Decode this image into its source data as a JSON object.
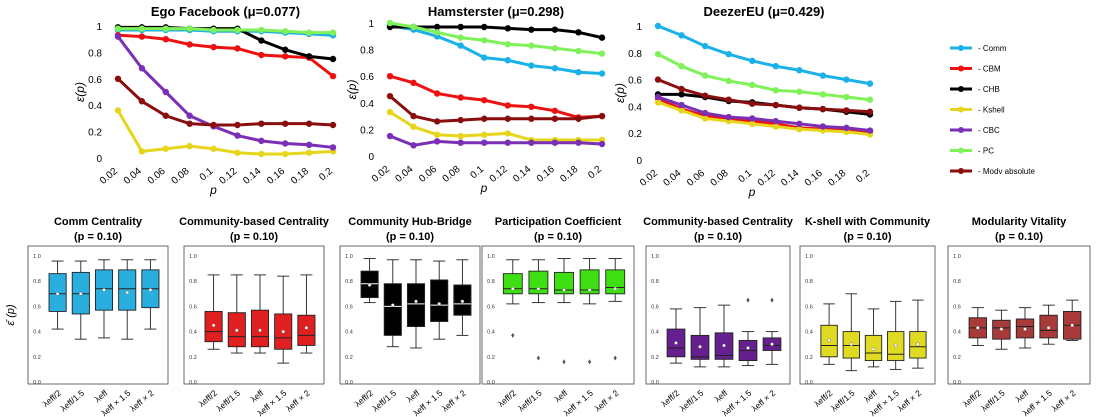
{
  "line_legend": {
    "entries": [
      {
        "label": "- Comm",
        "color": "#1ab0e8"
      },
      {
        "label": "- CBM",
        "color": "#ee1111"
      },
      {
        "label": "- CHB",
        "color": "#000000"
      },
      {
        "label": "- Kshell",
        "color": "#e6d51a"
      },
      {
        "label": "- CBC",
        "color": "#7a2fb5"
      },
      {
        "label": "- PC",
        "color": "#7ff25a"
      },
      {
        "label": "- Modv absolute",
        "color": "#8b0e0e"
      }
    ]
  },
  "chart_data": [
    {
      "type": "line",
      "title": "Ego Facebook (μ=0.077)",
      "xlabel": "p",
      "ylabel": "ε(p)",
      "x": [
        "0.02",
        "0.04",
        "0.06",
        "0.08",
        "0.1",
        "0.12",
        "0.14",
        "0.16",
        "0.18",
        "0.2"
      ],
      "yticks": [
        "0",
        "0.2",
        "0.4",
        "0.6",
        "0.8",
        "1"
      ],
      "ylim": [
        0,
        1
      ],
      "grid": false,
      "series": [
        {
          "name": "- Comm",
          "color": "#1ab0e8",
          "values": [
            0.97,
            0.97,
            0.97,
            0.97,
            0.96,
            0.96,
            0.96,
            0.95,
            0.94,
            0.93
          ]
        },
        {
          "name": "- CBM",
          "color": "#ee1111",
          "values": [
            0.93,
            0.92,
            0.9,
            0.86,
            0.84,
            0.83,
            0.78,
            0.77,
            0.76,
            0.62
          ]
        },
        {
          "name": "- CHB",
          "color": "#000000",
          "values": [
            0.99,
            0.99,
            0.99,
            0.98,
            0.98,
            0.98,
            0.89,
            0.82,
            0.77,
            0.75
          ]
        },
        {
          "name": "- Kshell",
          "color": "#e6d51a",
          "values": [
            0.36,
            0.05,
            0.07,
            0.09,
            0.07,
            0.04,
            0.03,
            0.03,
            0.04,
            0.05
          ]
        },
        {
          "name": "- CBC",
          "color": "#7a2fb5",
          "values": [
            0.92,
            0.68,
            0.5,
            0.32,
            0.24,
            0.17,
            0.13,
            0.11,
            0.1,
            0.08
          ]
        },
        {
          "name": "- PC",
          "color": "#7ff25a",
          "values": [
            0.98,
            0.98,
            0.98,
            0.98,
            0.97,
            0.97,
            0.97,
            0.96,
            0.95,
            0.95
          ]
        },
        {
          "name": "- Modv absolute",
          "color": "#8b0e0e",
          "values": [
            0.6,
            0.43,
            0.32,
            0.26,
            0.25,
            0.25,
            0.26,
            0.26,
            0.26,
            0.25
          ]
        }
      ]
    },
    {
      "type": "line",
      "title": "Hamsterster (μ=0.298)",
      "xlabel": "p",
      "ylabel": "ε(p)",
      "x": [
        "0.02",
        "0.04",
        "0.06",
        "0.08",
        "0.1",
        "0.12",
        "0.14",
        "0.16",
        "0.18",
        "0.2"
      ],
      "yticks": [
        "0",
        "0.2",
        "0.4",
        "0.6",
        "0.8",
        "1"
      ],
      "ylim": [
        0,
        1
      ],
      "grid": false,
      "series": [
        {
          "name": "- Comm",
          "color": "#1ab0e8",
          "values": [
            0.98,
            0.95,
            0.9,
            0.83,
            0.74,
            0.72,
            0.68,
            0.66,
            0.63,
            0.62
          ]
        },
        {
          "name": "- CBM",
          "color": "#ee1111",
          "values": [
            0.6,
            0.55,
            0.47,
            0.44,
            0.42,
            0.38,
            0.37,
            0.34,
            0.29,
            0.3
          ]
        },
        {
          "name": "- CHB",
          "color": "#000000",
          "values": [
            0.97,
            0.97,
            0.97,
            0.97,
            0.97,
            0.96,
            0.95,
            0.95,
            0.93,
            0.89
          ]
        },
        {
          "name": "- Kshell",
          "color": "#e6d51a",
          "values": [
            0.33,
            0.22,
            0.16,
            0.15,
            0.16,
            0.17,
            0.12,
            0.12,
            0.12,
            0.12
          ]
        },
        {
          "name": "- CBC",
          "color": "#7a2fb5",
          "values": [
            0.15,
            0.08,
            0.11,
            0.1,
            0.1,
            0.1,
            0.1,
            0.1,
            0.1,
            0.09
          ]
        },
        {
          "name": "- PC",
          "color": "#7ff25a",
          "values": [
            1.0,
            0.97,
            0.93,
            0.89,
            0.87,
            0.84,
            0.83,
            0.81,
            0.79,
            0.77
          ]
        },
        {
          "name": "- Modv absolute",
          "color": "#8b0e0e",
          "values": [
            0.45,
            0.3,
            0.26,
            0.27,
            0.28,
            0.28,
            0.28,
            0.28,
            0.28,
            0.3
          ]
        }
      ]
    },
    {
      "type": "line",
      "title": "DeezerEU (μ=0.429)",
      "xlabel": "p",
      "ylabel": "ε(p)",
      "x": [
        "0.02",
        "0.04",
        "0.06",
        "0.08",
        "0.1",
        "0.12",
        "0.14",
        "0.16",
        "0.18",
        "0.2"
      ],
      "yticks": [
        "0",
        "0.2",
        "0.4",
        "0.6",
        "0.8",
        "1"
      ],
      "ylim": [
        0,
        1
      ],
      "grid": false,
      "series": [
        {
          "name": "- Comm",
          "color": "#1ab0e8",
          "values": [
            1.0,
            0.93,
            0.85,
            0.79,
            0.74,
            0.7,
            0.67,
            0.63,
            0.6,
            0.57
          ]
        },
        {
          "name": "- CBM",
          "color": "#ee1111",
          "values": [
            0.46,
            0.38,
            0.33,
            0.31,
            0.29,
            0.27,
            0.24,
            0.23,
            0.22,
            0.2
          ]
        },
        {
          "name": "- CHB",
          "color": "#000000",
          "values": [
            0.49,
            0.49,
            0.47,
            0.44,
            0.43,
            0.41,
            0.39,
            0.38,
            0.36,
            0.34
          ]
        },
        {
          "name": "- Kshell",
          "color": "#e6d51a",
          "values": [
            0.43,
            0.37,
            0.31,
            0.29,
            0.27,
            0.25,
            0.23,
            0.22,
            0.21,
            0.19
          ]
        },
        {
          "name": "- CBC",
          "color": "#7a2fb5",
          "values": [
            0.47,
            0.41,
            0.35,
            0.32,
            0.31,
            0.29,
            0.27,
            0.25,
            0.24,
            0.22
          ]
        },
        {
          "name": "- PC",
          "color": "#7ff25a",
          "values": [
            0.79,
            0.7,
            0.63,
            0.59,
            0.56,
            0.52,
            0.51,
            0.49,
            0.47,
            0.45
          ]
        },
        {
          "name": "- Modv absolute",
          "color": "#8b0e0e",
          "values": [
            0.6,
            0.53,
            0.48,
            0.45,
            0.42,
            0.41,
            0.39,
            0.38,
            0.37,
            0.36
          ]
        }
      ]
    },
    {
      "type": "box",
      "title": "Comm Centrality",
      "subtitle": "(p = 0.10)",
      "ylabel": "ε̄ (p)",
      "color": "#2aaee0",
      "yticks": [
        "0.0",
        "0.2",
        "0.4",
        "0.6",
        "0.8",
        "1.0"
      ],
      "ylim": [
        0,
        1
      ],
      "categories": [
        "λeff/2",
        "λeff/1.5",
        "λeff",
        "λeff × 1.5",
        "λeff × 2"
      ],
      "boxes": [
        {
          "min": 0.42,
          "q1": 0.56,
          "median": 0.7,
          "q3": 0.86,
          "max": 0.96,
          "mean": 0.7,
          "outliers": []
        },
        {
          "min": 0.34,
          "q1": 0.54,
          "median": 0.7,
          "q3": 0.87,
          "max": 0.96,
          "mean": 0.7,
          "outliers": []
        },
        {
          "min": 0.35,
          "q1": 0.57,
          "median": 0.74,
          "q3": 0.89,
          "max": 0.97,
          "mean": 0.73,
          "outliers": []
        },
        {
          "min": 0.34,
          "q1": 0.57,
          "median": 0.74,
          "q3": 0.89,
          "max": 0.97,
          "mean": 0.71,
          "outliers": []
        },
        {
          "min": 0.42,
          "q1": 0.59,
          "median": 0.74,
          "q3": 0.89,
          "max": 0.97,
          "mean": 0.73,
          "outliers": []
        }
      ]
    },
    {
      "type": "box",
      "title": "Community-based Centrality",
      "subtitle": "(p = 0.10)",
      "color": "#e02020",
      "yticks": [
        "0.0",
        "0.2",
        "0.4",
        "0.6",
        "0.8",
        "1.0"
      ],
      "ylim": [
        0,
        1
      ],
      "categories": [
        "λeff/2",
        "λeff/1.5",
        "λeff",
        "λeff × 1.5",
        "λeff × 2"
      ],
      "boxes": [
        {
          "min": 0.26,
          "q1": 0.32,
          "median": 0.4,
          "q3": 0.56,
          "max": 0.85,
          "mean": 0.45,
          "outliers": []
        },
        {
          "min": 0.23,
          "q1": 0.28,
          "median": 0.36,
          "q3": 0.55,
          "max": 0.85,
          "mean": 0.41,
          "outliers": []
        },
        {
          "min": 0.23,
          "q1": 0.28,
          "median": 0.36,
          "q3": 0.57,
          "max": 0.85,
          "mean": 0.41,
          "outliers": []
        },
        {
          "min": 0.15,
          "q1": 0.26,
          "median": 0.35,
          "q3": 0.54,
          "max": 0.84,
          "mean": 0.4,
          "outliers": []
        },
        {
          "min": 0.23,
          "q1": 0.29,
          "median": 0.37,
          "q3": 0.53,
          "max": 0.85,
          "mean": 0.43,
          "outliers": []
        }
      ]
    },
    {
      "type": "box",
      "title": "Community Hub-Bridge",
      "subtitle": "(p = 0.10)",
      "color": "#000000",
      "yticks": [
        "0.0",
        "0.2",
        "0.4",
        "0.6",
        "0.8",
        "1.0"
      ],
      "ylim": [
        0,
        1
      ],
      "categories": [
        "λeff/2",
        "λeff/1.5",
        "λeff",
        "λeff × 1.5",
        "λeff × 2"
      ],
      "boxes": [
        {
          "min": 0.63,
          "q1": 0.67,
          "median": 0.78,
          "q3": 0.88,
          "max": 0.98,
          "mean": 0.77,
          "outliers": []
        },
        {
          "min": 0.28,
          "q1": 0.37,
          "median": 0.6,
          "q3": 0.78,
          "max": 0.97,
          "mean": 0.61,
          "outliers": []
        },
        {
          "min": 0.27,
          "q1": 0.44,
          "median": 0.62,
          "q3": 0.78,
          "max": 0.97,
          "mean": 0.64,
          "outliers": []
        },
        {
          "min": 0.34,
          "q1": 0.48,
          "median": 0.61,
          "q3": 0.81,
          "max": 0.96,
          "mean": 0.62,
          "outliers": []
        },
        {
          "min": 0.37,
          "q1": 0.53,
          "median": 0.62,
          "q3": 0.77,
          "max": 0.97,
          "mean": 0.64,
          "outliers": []
        }
      ]
    },
    {
      "type": "box",
      "title": "Participation Coefficient",
      "subtitle": "(p = 0.10)",
      "color": "#3ee014",
      "yticks": [
        "0.0",
        "0.2",
        "0.4",
        "0.6",
        "0.8",
        "1.0"
      ],
      "ylim": [
        0,
        1
      ],
      "categories": [
        "λeff/2",
        "λeff/1.5",
        "λeff",
        "λeff × 1.5",
        "λeff × 2"
      ],
      "boxes": [
        {
          "min": 0.62,
          "q1": 0.7,
          "median": 0.74,
          "q3": 0.86,
          "max": 0.97,
          "mean": 0.74,
          "outliers": [
            0.37
          ]
        },
        {
          "min": 0.63,
          "q1": 0.7,
          "median": 0.74,
          "q3": 0.88,
          "max": 0.97,
          "mean": 0.74,
          "outliers": [
            0.19
          ]
        },
        {
          "min": 0.63,
          "q1": 0.7,
          "median": 0.73,
          "q3": 0.87,
          "max": 0.98,
          "mean": 0.73,
          "outliers": [
            0.16
          ]
        },
        {
          "min": 0.62,
          "q1": 0.7,
          "median": 0.73,
          "q3": 0.89,
          "max": 0.98,
          "mean": 0.73,
          "outliers": [
            0.16
          ]
        },
        {
          "min": 0.64,
          "q1": 0.7,
          "median": 0.75,
          "q3": 0.89,
          "max": 0.98,
          "mean": 0.74,
          "outliers": [
            0.19
          ]
        }
      ]
    },
    {
      "type": "box",
      "title": "Community-based Centrality",
      "subtitle": "(p = 0.10)",
      "color": "#661f8f",
      "yticks": [
        "0.0",
        "0.2",
        "0.4",
        "0.6",
        "0.8",
        "1.0"
      ],
      "ylim": [
        0,
        1
      ],
      "categories": [
        "λeff/2",
        "λeff/1.5",
        "λeff",
        "λeff × 1.5",
        "λeff × 2"
      ],
      "boxes": [
        {
          "min": 0.15,
          "q1": 0.2,
          "median": 0.27,
          "q3": 0.42,
          "max": 0.58,
          "mean": 0.31,
          "outliers": []
        },
        {
          "min": 0.12,
          "q1": 0.18,
          "median": 0.2,
          "q3": 0.37,
          "max": 0.59,
          "mean": 0.28,
          "outliers": []
        },
        {
          "min": 0.12,
          "q1": 0.18,
          "median": 0.21,
          "q3": 0.39,
          "max": 0.61,
          "mean": 0.29,
          "outliers": []
        },
        {
          "min": 0.13,
          "q1": 0.17,
          "median": 0.25,
          "q3": 0.33,
          "max": 0.4,
          "mean": 0.27,
          "outliers": [
            0.65
          ]
        },
        {
          "min": 0.14,
          "q1": 0.25,
          "median": 0.29,
          "q3": 0.35,
          "max": 0.4,
          "mean": 0.3,
          "outliers": [
            0.65
          ]
        }
      ]
    },
    {
      "type": "box",
      "title": "K-shell with Community",
      "subtitle": "(p = 0.10)",
      "color": "#e0da22",
      "yticks": [
        "0.0",
        "0.2",
        "0.4",
        "0.6",
        "0.8",
        "1.0"
      ],
      "ylim": [
        0,
        1
      ],
      "categories": [
        "λeff/2",
        "λeff/1.5",
        "λeff",
        "λeff × 1.5",
        "λeff × 2"
      ],
      "boxes": [
        {
          "min": 0.14,
          "q1": 0.2,
          "median": 0.29,
          "q3": 0.45,
          "max": 0.62,
          "mean": 0.33,
          "outliers": []
        },
        {
          "min": 0.09,
          "q1": 0.19,
          "median": 0.29,
          "q3": 0.4,
          "max": 0.7,
          "mean": 0.3,
          "outliers": []
        },
        {
          "min": 0.12,
          "q1": 0.17,
          "median": 0.23,
          "q3": 0.37,
          "max": 0.58,
          "mean": 0.26,
          "outliers": []
        },
        {
          "min": 0.1,
          "q1": 0.17,
          "median": 0.22,
          "q3": 0.4,
          "max": 0.64,
          "mean": 0.29,
          "outliers": []
        },
        {
          "min": 0.11,
          "q1": 0.19,
          "median": 0.28,
          "q3": 0.4,
          "max": 0.65,
          "mean": 0.3,
          "outliers": []
        }
      ]
    },
    {
      "type": "box",
      "title": "Modularity Vitality",
      "subtitle": "(p = 0.10)",
      "color": "#a83a3a",
      "yticks": [
        "0.0",
        "0.2",
        "0.4",
        "0.6",
        "0.8",
        "1.0"
      ],
      "ylim": [
        0,
        1
      ],
      "categories": [
        "λeff/2",
        "λeff/1.5",
        "λeff",
        "λeff × 1.5",
        "λeff × 2"
      ],
      "boxes": [
        {
          "min": 0.29,
          "q1": 0.35,
          "median": 0.43,
          "q3": 0.51,
          "max": 0.59,
          "mean": 0.43,
          "outliers": []
        },
        {
          "min": 0.26,
          "q1": 0.34,
          "median": 0.43,
          "q3": 0.49,
          "max": 0.57,
          "mean": 0.42,
          "outliers": []
        },
        {
          "min": 0.27,
          "q1": 0.35,
          "median": 0.44,
          "q3": 0.5,
          "max": 0.59,
          "mean": 0.42,
          "outliers": []
        },
        {
          "min": 0.3,
          "q1": 0.35,
          "median": 0.41,
          "q3": 0.53,
          "max": 0.61,
          "mean": 0.43,
          "outliers": []
        },
        {
          "min": 0.33,
          "q1": 0.34,
          "median": 0.45,
          "q3": 0.56,
          "max": 0.65,
          "mean": 0.45,
          "outliers": []
        }
      ]
    }
  ]
}
